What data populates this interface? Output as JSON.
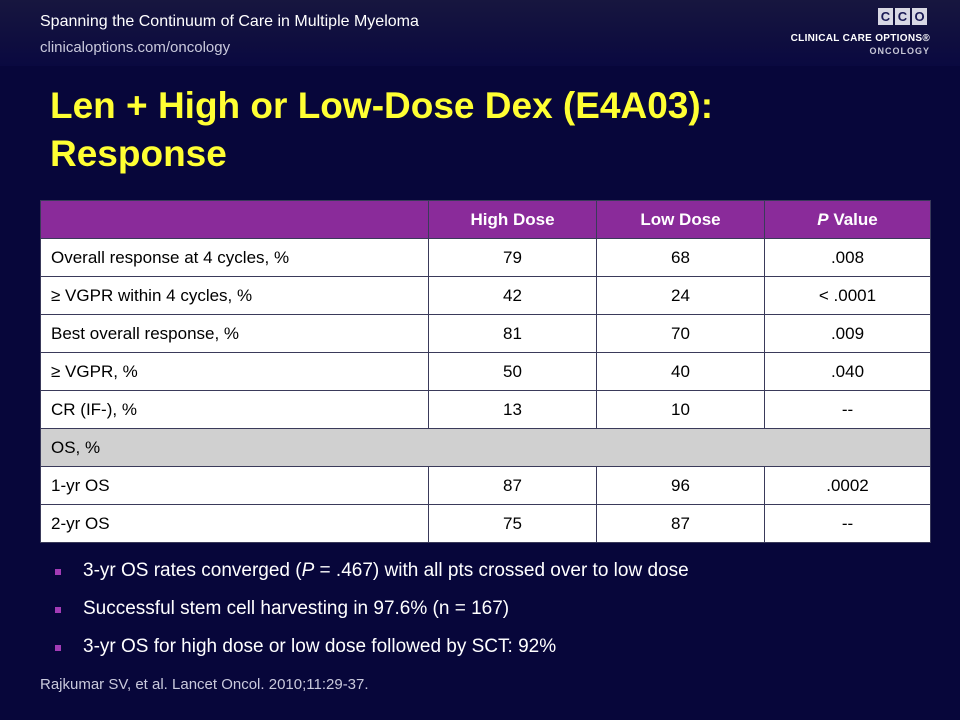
{
  "header": {
    "title": "Spanning the Continuum of Care in Multiple Myeloma",
    "url": "clinicaloptions.com/oncology",
    "logo_letters": [
      "C",
      "C",
      "O"
    ],
    "logo_line1": "CLINICAL CARE OPTIONS®",
    "logo_line2": "ONCOLOGY"
  },
  "slide": {
    "title_line1": "Len + High or Low-Dose Dex (E4A03):",
    "title_line2": "Response"
  },
  "table": {
    "headers": [
      "",
      "High Dose",
      "Low Dose",
      "Value"
    ],
    "header_p": "P",
    "rows": [
      {
        "label": "Overall response at 4 cycles, %",
        "high": "79",
        "low": "68",
        "p": ".008"
      },
      {
        "label": "≥ VGPR within 4 cycles, %",
        "high": "42",
        "low": "24",
        "p": "< .0001"
      },
      {
        "label": "Best overall response, %",
        "high": "81",
        "low": "70",
        "p": ".009"
      },
      {
        "label": "≥ VGPR, %",
        "high": "50",
        "low": "40",
        "p": ".040"
      },
      {
        "label": "CR (IF-), %",
        "high": "13",
        "low": "10",
        "p": "--"
      }
    ],
    "section_label": "OS, %",
    "os_rows": [
      {
        "label": "1-yr OS",
        "high": "87",
        "low": "96",
        "p": ".0002"
      },
      {
        "label": "2-yr OS",
        "high": "75",
        "low": "87",
        "p": "--"
      }
    ]
  },
  "bullets": {
    "b1_pre": "3-yr OS rates converged (",
    "b1_p": "P",
    "b1_post": " = .467) with all pts crossed over to low dose",
    "b2": "Successful stem cell harvesting in 97.6% (n = 167)",
    "b3": "3-yr OS for high dose or low dose followed by SCT: 92%"
  },
  "citation": "Rajkumar SV, et al. Lancet Oncol. 2010;11:29-37.",
  "colors": {
    "background": "#07063a",
    "title": "#ffff33",
    "table_header": "#8a2b9a",
    "section_row": "#d0d0d0",
    "bullet": "#a23bb5"
  }
}
